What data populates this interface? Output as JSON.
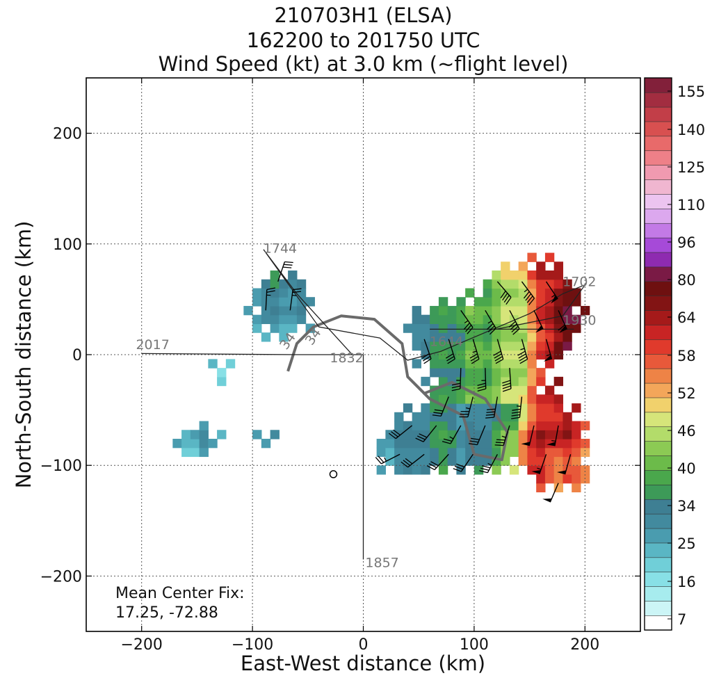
{
  "title": {
    "line1": "210703H1 (ELSA)",
    "line2": "162200 to 201750 UTC",
    "line3": "Wind Speed (kt) at 3.0 km (~flight level)"
  },
  "chart_data": {
    "type": "heatmap",
    "xlabel": "East-West distance (km)",
    "ylabel": "North-South distance (km)",
    "xlim": [
      -250,
      250
    ],
    "ylim": [
      -250,
      250
    ],
    "xticks": [
      -200,
      -100,
      0,
      100,
      200
    ],
    "yticks": [
      -200,
      -100,
      0,
      100,
      200
    ],
    "xtick_labels": [
      "−200",
      "−100",
      "0",
      "100",
      "200"
    ],
    "ytick_labels": [
      "−200",
      "−100",
      "0",
      "100",
      "200"
    ],
    "grid": true,
    "colorbar": {
      "tick_labels": [
        "155",
        "140",
        "125",
        "110",
        "96",
        "80",
        "64",
        "58",
        "52",
        "46",
        "40",
        "34",
        "25",
        "16",
        "7"
      ],
      "levels": [
        {
          "min": 0,
          "max": 7,
          "color": "#ffffff"
        },
        {
          "min": 7,
          "max": 10,
          "color": "#ccf5f6"
        },
        {
          "min": 10,
          "max": 13,
          "color": "#a7ecee"
        },
        {
          "min": 13,
          "max": 16,
          "color": "#88e0e6"
        },
        {
          "min": 16,
          "max": 19,
          "color": "#70cfd8"
        },
        {
          "min": 19,
          "max": 22,
          "color": "#5ab6c4"
        },
        {
          "min": 22,
          "max": 25,
          "color": "#4a9caf"
        },
        {
          "min": 25,
          "max": 28,
          "color": "#428a9e"
        },
        {
          "min": 28,
          "max": 31,
          "color": "#3e7f93"
        },
        {
          "min": 31,
          "max": 34,
          "color": "#3d9a58"
        },
        {
          "min": 34,
          "max": 36,
          "color": "#4aa74c"
        },
        {
          "min": 36,
          "max": 38,
          "color": "#6cbb4a"
        },
        {
          "min": 38,
          "max": 40,
          "color": "#8cca54"
        },
        {
          "min": 40,
          "max": 42,
          "color": "#b3dc6a"
        },
        {
          "min": 42,
          "max": 44,
          "color": "#d6e57a"
        },
        {
          "min": 44,
          "max": 46,
          "color": "#f1d16c"
        },
        {
          "min": 46,
          "max": 48,
          "color": "#f3a65a"
        },
        {
          "min": 48,
          "max": 50,
          "color": "#ee8346"
        },
        {
          "min": 50,
          "max": 52,
          "color": "#e8593a"
        },
        {
          "min": 52,
          "max": 54,
          "color": "#e03a2c"
        },
        {
          "min": 54,
          "max": 56,
          "color": "#c82424"
        },
        {
          "min": 56,
          "max": 58,
          "color": "#a51a1a"
        },
        {
          "min": 58,
          "max": 60,
          "color": "#821414"
        },
        {
          "min": 60,
          "max": 64,
          "color": "#6e1010"
        },
        {
          "min": 64,
          "max": 72,
          "color": "#7a1a45"
        },
        {
          "min": 72,
          "max": 80,
          "color": "#8e2bb0"
        },
        {
          "min": 80,
          "max": 88,
          "color": "#a64ad8"
        },
        {
          "min": 88,
          "max": 96,
          "color": "#c37ae6"
        },
        {
          "min": 96,
          "max": 103,
          "color": "#dca8ee"
        },
        {
          "min": 103,
          "max": 110,
          "color": "#ecc4f0"
        },
        {
          "min": 110,
          "max": 118,
          "color": "#f0b6d0"
        },
        {
          "min": 118,
          "max": 125,
          "color": "#f09ab0"
        },
        {
          "min": 125,
          "max": 133,
          "color": "#ee8088"
        },
        {
          "min": 133,
          "max": 140,
          "color": "#e86a6a"
        },
        {
          "min": 140,
          "max": 148,
          "color": "#d85050"
        },
        {
          "min": 148,
          "max": 155,
          "color": "#c23e48"
        },
        {
          "min": 155,
          "max": 165,
          "color": "#a22d40"
        },
        {
          "min": 165,
          "max": 175,
          "color": "#82203a"
        }
      ]
    },
    "flight_track_labels": [
      {
        "text": "1744",
        "x": -75,
        "y": 92
      },
      {
        "text": "1702",
        "x": 195,
        "y": 62
      },
      {
        "text": "1930",
        "x": 195,
        "y": 27
      },
      {
        "text": "2017",
        "x": -190,
        "y": 5
      },
      {
        "text": "1832",
        "x": -15,
        "y": -7
      },
      {
        "text": "1644",
        "x": 75,
        "y": 8
      },
      {
        "text": "1857",
        "x": 17,
        "y": -192
      }
    ],
    "contour_labels": [
      {
        "text": "34",
        "x": -65,
        "y": 10
      },
      {
        "text": "34",
        "x": -42,
        "y": 14
      }
    ],
    "mean_center_fix": {
      "label": "Mean Center Fix:",
      "value": "17.25, -72.88"
    }
  }
}
